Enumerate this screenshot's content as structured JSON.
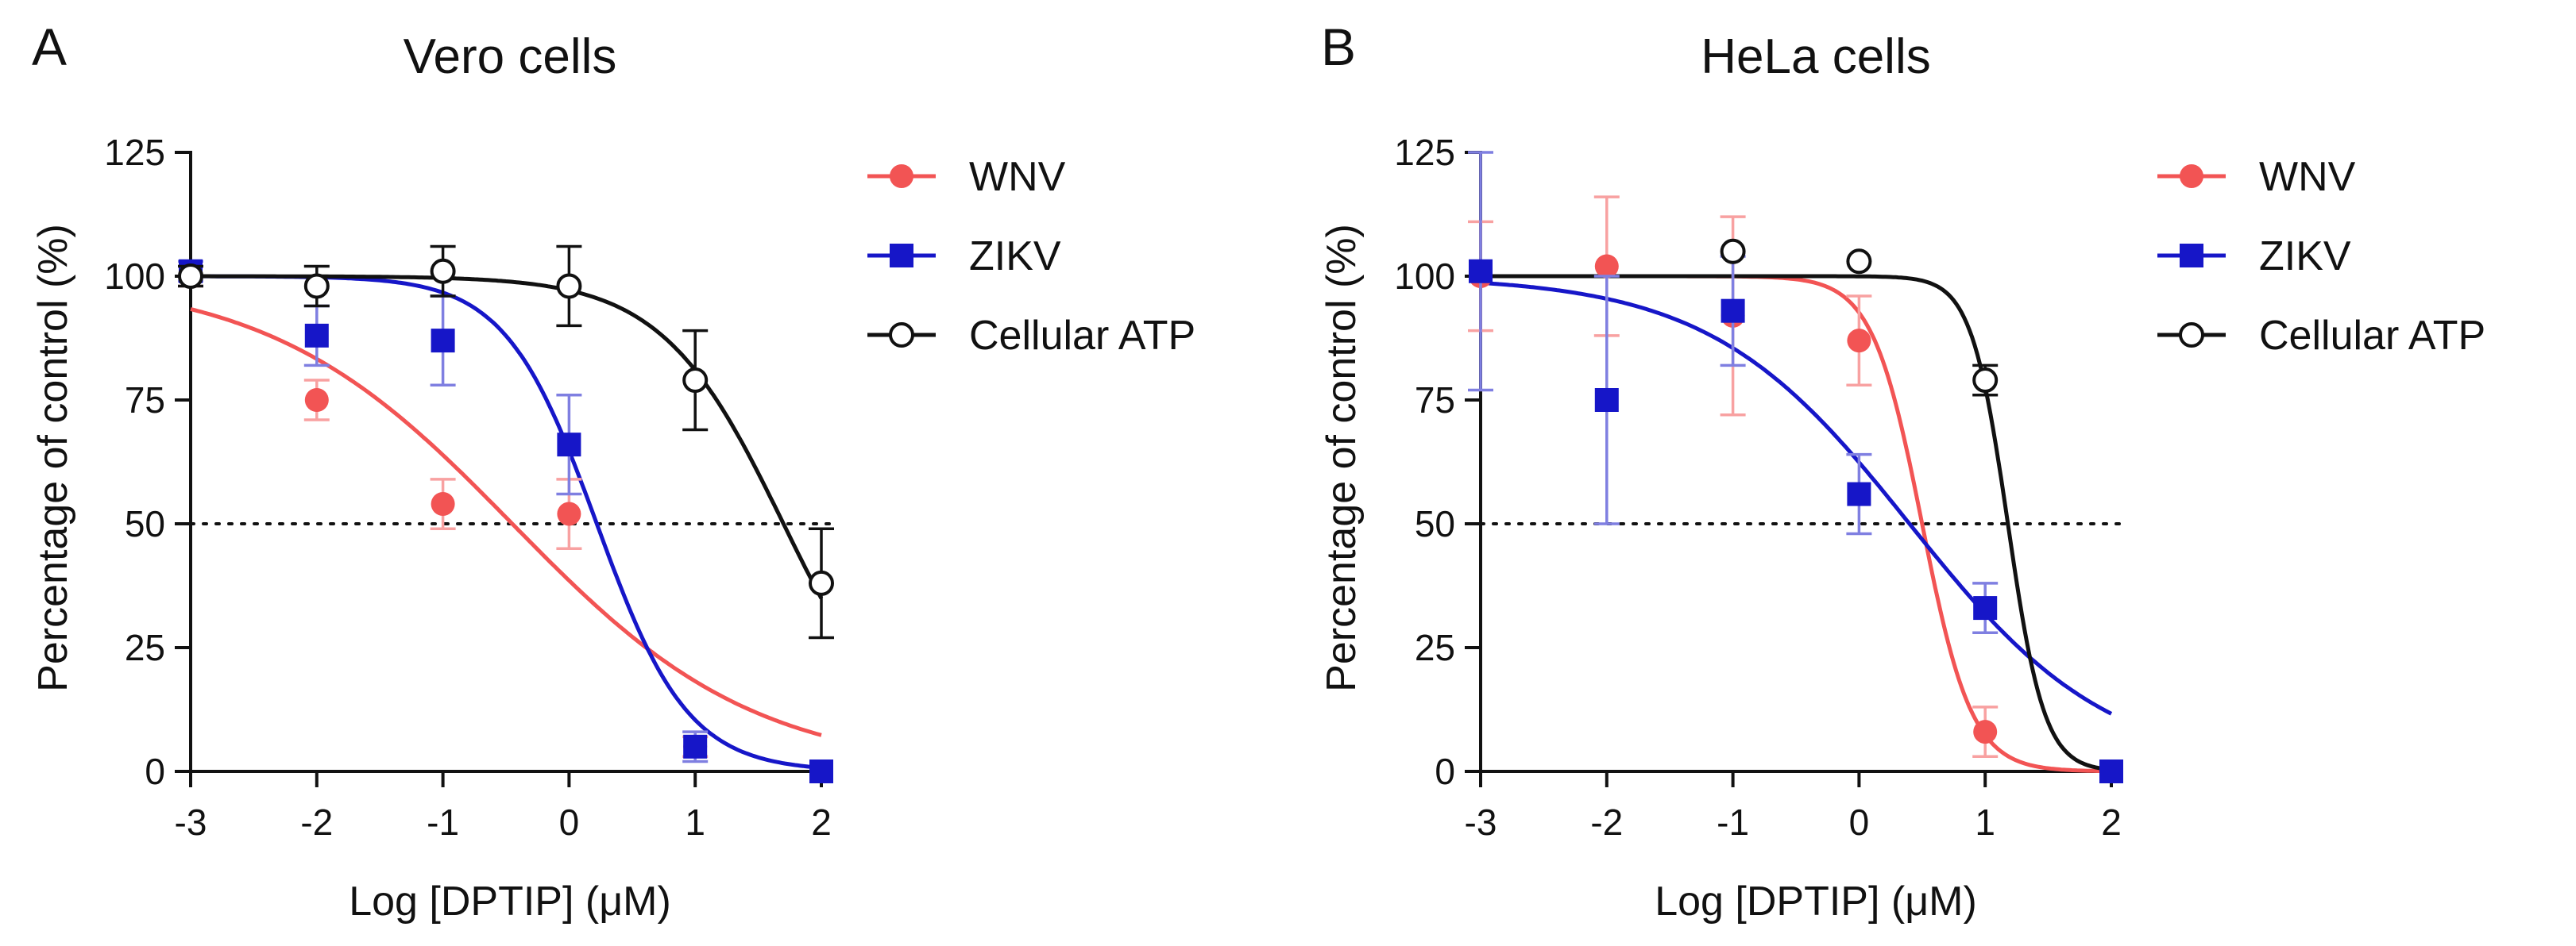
{
  "chart_data": [
    {
      "type": "scatter",
      "panel_label": "A",
      "title": "Vero cells",
      "xlabel": "Log [DPTIP] (μM)",
      "ylabel": "Percentage of control (%)",
      "xlim": [
        -3,
        2
      ],
      "ylim": [
        0,
        125
      ],
      "xticks": [
        "-3",
        "-2",
        "-1",
        "0",
        "1",
        "2"
      ],
      "yticks": [
        "0",
        "25",
        "50",
        "75",
        "100",
        "125"
      ],
      "reference_line_y": 50,
      "legend_position": "right",
      "series": [
        {
          "name": "WNV",
          "color": "#f25454",
          "marker": "filled-circle",
          "x": [
            -3,
            -2,
            -1,
            0,
            1,
            2
          ],
          "y": [
            100,
            75,
            54,
            52,
            5,
            0
          ],
          "error": [
            2,
            4,
            5,
            7,
            2,
            0
          ],
          "fit": {
            "top": 100,
            "bottom": 0,
            "log_ic50": -0.45,
            "hill": 0.45
          }
        },
        {
          "name": "ZIKV",
          "color": "#1616c8",
          "marker": "filled-square",
          "x": [
            -3,
            -2,
            -1,
            0,
            1,
            2
          ],
          "y": [
            101,
            88,
            87,
            66,
            5,
            0
          ],
          "error": [
            2,
            6,
            9,
            10,
            3,
            0
          ],
          "fit": {
            "top": 100,
            "bottom": 0,
            "log_ic50": 0.22,
            "hill": 1.2
          }
        },
        {
          "name": "Cellular ATP",
          "color": "#111111",
          "marker": "open-circle",
          "x": [
            -3,
            -2,
            -1,
            0,
            1,
            2
          ],
          "y": [
            100,
            98,
            101,
            98,
            79,
            38
          ],
          "error": [
            2,
            4,
            5,
            8,
            10,
            11
          ],
          "fit": {
            "top": 100,
            "bottom": 0,
            "log_ic50": 1.7,
            "hill": 0.9
          }
        }
      ]
    },
    {
      "type": "scatter",
      "panel_label": "B",
      "title": "HeLa cells",
      "xlabel": "Log [DPTIP] (μM)",
      "ylabel": "Percentage of control (%)",
      "xlim": [
        -3,
        2
      ],
      "ylim": [
        0,
        125
      ],
      "xticks": [
        "-3",
        "-2",
        "-1",
        "0",
        "1",
        "2"
      ],
      "yticks": [
        "0",
        "25",
        "50",
        "75",
        "100",
        "125"
      ],
      "reference_line_y": 50,
      "legend_position": "right",
      "series": [
        {
          "name": "WNV",
          "color": "#f25454",
          "marker": "filled-circle",
          "x": [
            -3,
            -2,
            -1,
            0,
            1,
            2
          ],
          "y": [
            100,
            102,
            92,
            87,
            8,
            0
          ],
          "error": [
            11,
            14,
            20,
            9,
            5,
            0
          ],
          "fit": {
            "top": 100,
            "bottom": 0,
            "log_ic50": 0.5,
            "hill": 2.2
          }
        },
        {
          "name": "ZIKV",
          "color": "#1616c8",
          "marker": "filled-square",
          "x": [
            -3,
            -2,
            -1,
            0,
            1,
            2
          ],
          "y": [
            101,
            75,
            93,
            56,
            33,
            0
          ],
          "error": [
            24,
            25,
            11,
            8,
            5,
            0
          ],
          "fit": {
            "top": 100,
            "bottom": 0,
            "log_ic50": 0.4,
            "hill": 0.55
          }
        },
        {
          "name": "Cellular ATP",
          "color": "#111111",
          "marker": "open-circle",
          "x": [
            -1,
            0,
            1
          ],
          "y": [
            105,
            103,
            79
          ],
          "error": [
            0,
            0,
            3
          ],
          "fit": {
            "top": 100,
            "bottom": 0,
            "log_ic50": 1.18,
            "hill": 3.0
          }
        }
      ]
    }
  ]
}
